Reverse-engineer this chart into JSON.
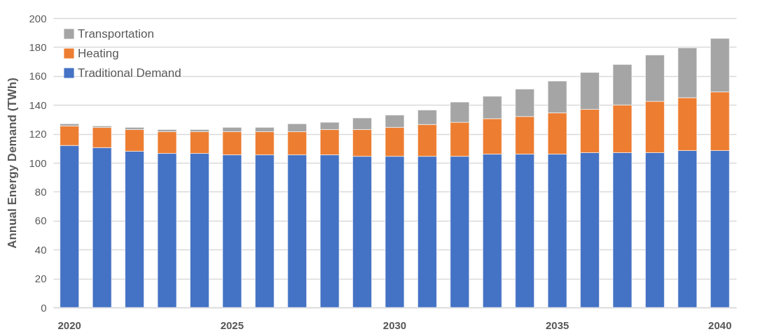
{
  "chart_data": {
    "type": "bar",
    "stacked": true,
    "ylabel": "Annual Energy Demand (TWh)",
    "categories": [
      "2020",
      null,
      null,
      null,
      null,
      "2025",
      null,
      null,
      null,
      null,
      "2030",
      null,
      null,
      null,
      null,
      "2035",
      null,
      null,
      null,
      null,
      "2040"
    ],
    "series": [
      {
        "name": "Traditional Demand",
        "color": "#4472c4",
        "values": [
          112,
          110.5,
          108,
          106.5,
          106.5,
          105.5,
          105.5,
          105.5,
          105.5,
          104.5,
          104.5,
          104.5,
          104.5,
          106,
          106,
          106,
          107,
          107,
          107,
          108.5,
          108.5
        ]
      },
      {
        "name": "Heating",
        "color": "#ed7d31",
        "values": [
          13.5,
          14,
          15,
          15,
          15,
          16,
          16,
          16,
          17.5,
          18.5,
          20,
          22,
          23.5,
          24.5,
          26,
          28.5,
          30,
          33,
          35.5,
          36.5,
          40.5
        ]
      },
      {
        "name": "Transportation",
        "color": "#a5a5a5",
        "values": [
          1.5,
          1,
          1.5,
          1.5,
          1.5,
          3,
          3,
          5.5,
          5,
          8,
          8.5,
          10,
          14,
          15.5,
          19,
          22,
          25.5,
          28,
          32,
          34.5,
          37
        ]
      }
    ],
    "ylim": [
      0,
      200
    ],
    "yticks": [
      0,
      20,
      40,
      60,
      80,
      100,
      120,
      140,
      160,
      180,
      200
    ],
    "grid": "y",
    "legend": "top left"
  }
}
